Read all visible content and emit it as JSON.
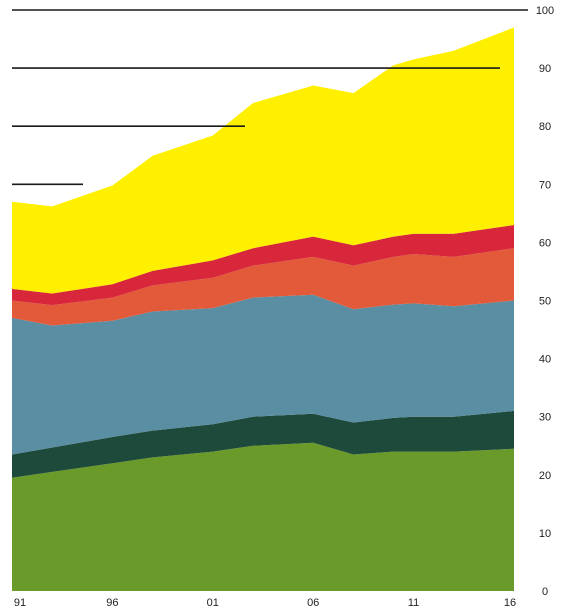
{
  "chart_data": {
    "type": "area",
    "stacked": true,
    "title": "",
    "xlabel": "",
    "ylabel": "",
    "x": [
      1991,
      1993,
      1996,
      1998,
      2001,
      2003,
      2006,
      2008,
      2010,
      2011,
      2013,
      2016
    ],
    "x_tick_labels": [
      "91",
      "96",
      "01",
      "06",
      "11",
      "16"
    ],
    "y_tick_labels": [
      "0",
      "10",
      "20",
      "30",
      "40",
      "50",
      "60",
      "70",
      "80",
      "90",
      "100"
    ],
    "ylim": [
      0,
      100
    ],
    "xlim": [
      1991,
      2016
    ],
    "y_axis_side": "right",
    "grid": "partial horizontal lines at 70, 80, 90, 100",
    "legend": "none",
    "series": [
      {
        "color": "#6a9a2a",
        "values": [
          19.5,
          20.5,
          22,
          23,
          24,
          25,
          25.5,
          23.5,
          24,
          24,
          24,
          24.5
        ]
      },
      {
        "color": "#1e4a3c",
        "values": [
          4,
          4.2,
          4.5,
          4.6,
          4.7,
          5,
          5,
          5.5,
          5.8,
          6,
          6,
          6.5
        ]
      },
      {
        "color": "#5a8ea2",
        "values": [
          23.5,
          21,
          20,
          20.5,
          20,
          20.5,
          20.5,
          19.5,
          19.5,
          19.5,
          19,
          19
        ]
      },
      {
        "color": "#e25a3a",
        "values": [
          3,
          3.5,
          4,
          4.5,
          5.2,
          5.5,
          6.5,
          7.5,
          8.2,
          8.5,
          8.5,
          9
        ]
      },
      {
        "color": "#d8263a",
        "values": [
          2,
          2,
          2.3,
          2.5,
          3,
          3,
          3.5,
          3.5,
          3.5,
          3.5,
          4,
          4
        ]
      },
      {
        "color": "#fff000",
        "values": [
          15,
          15,
          17,
          19.8,
          21.5,
          25,
          26,
          26.2,
          29.5,
          30,
          31.5,
          34
        ]
      }
    ]
  }
}
